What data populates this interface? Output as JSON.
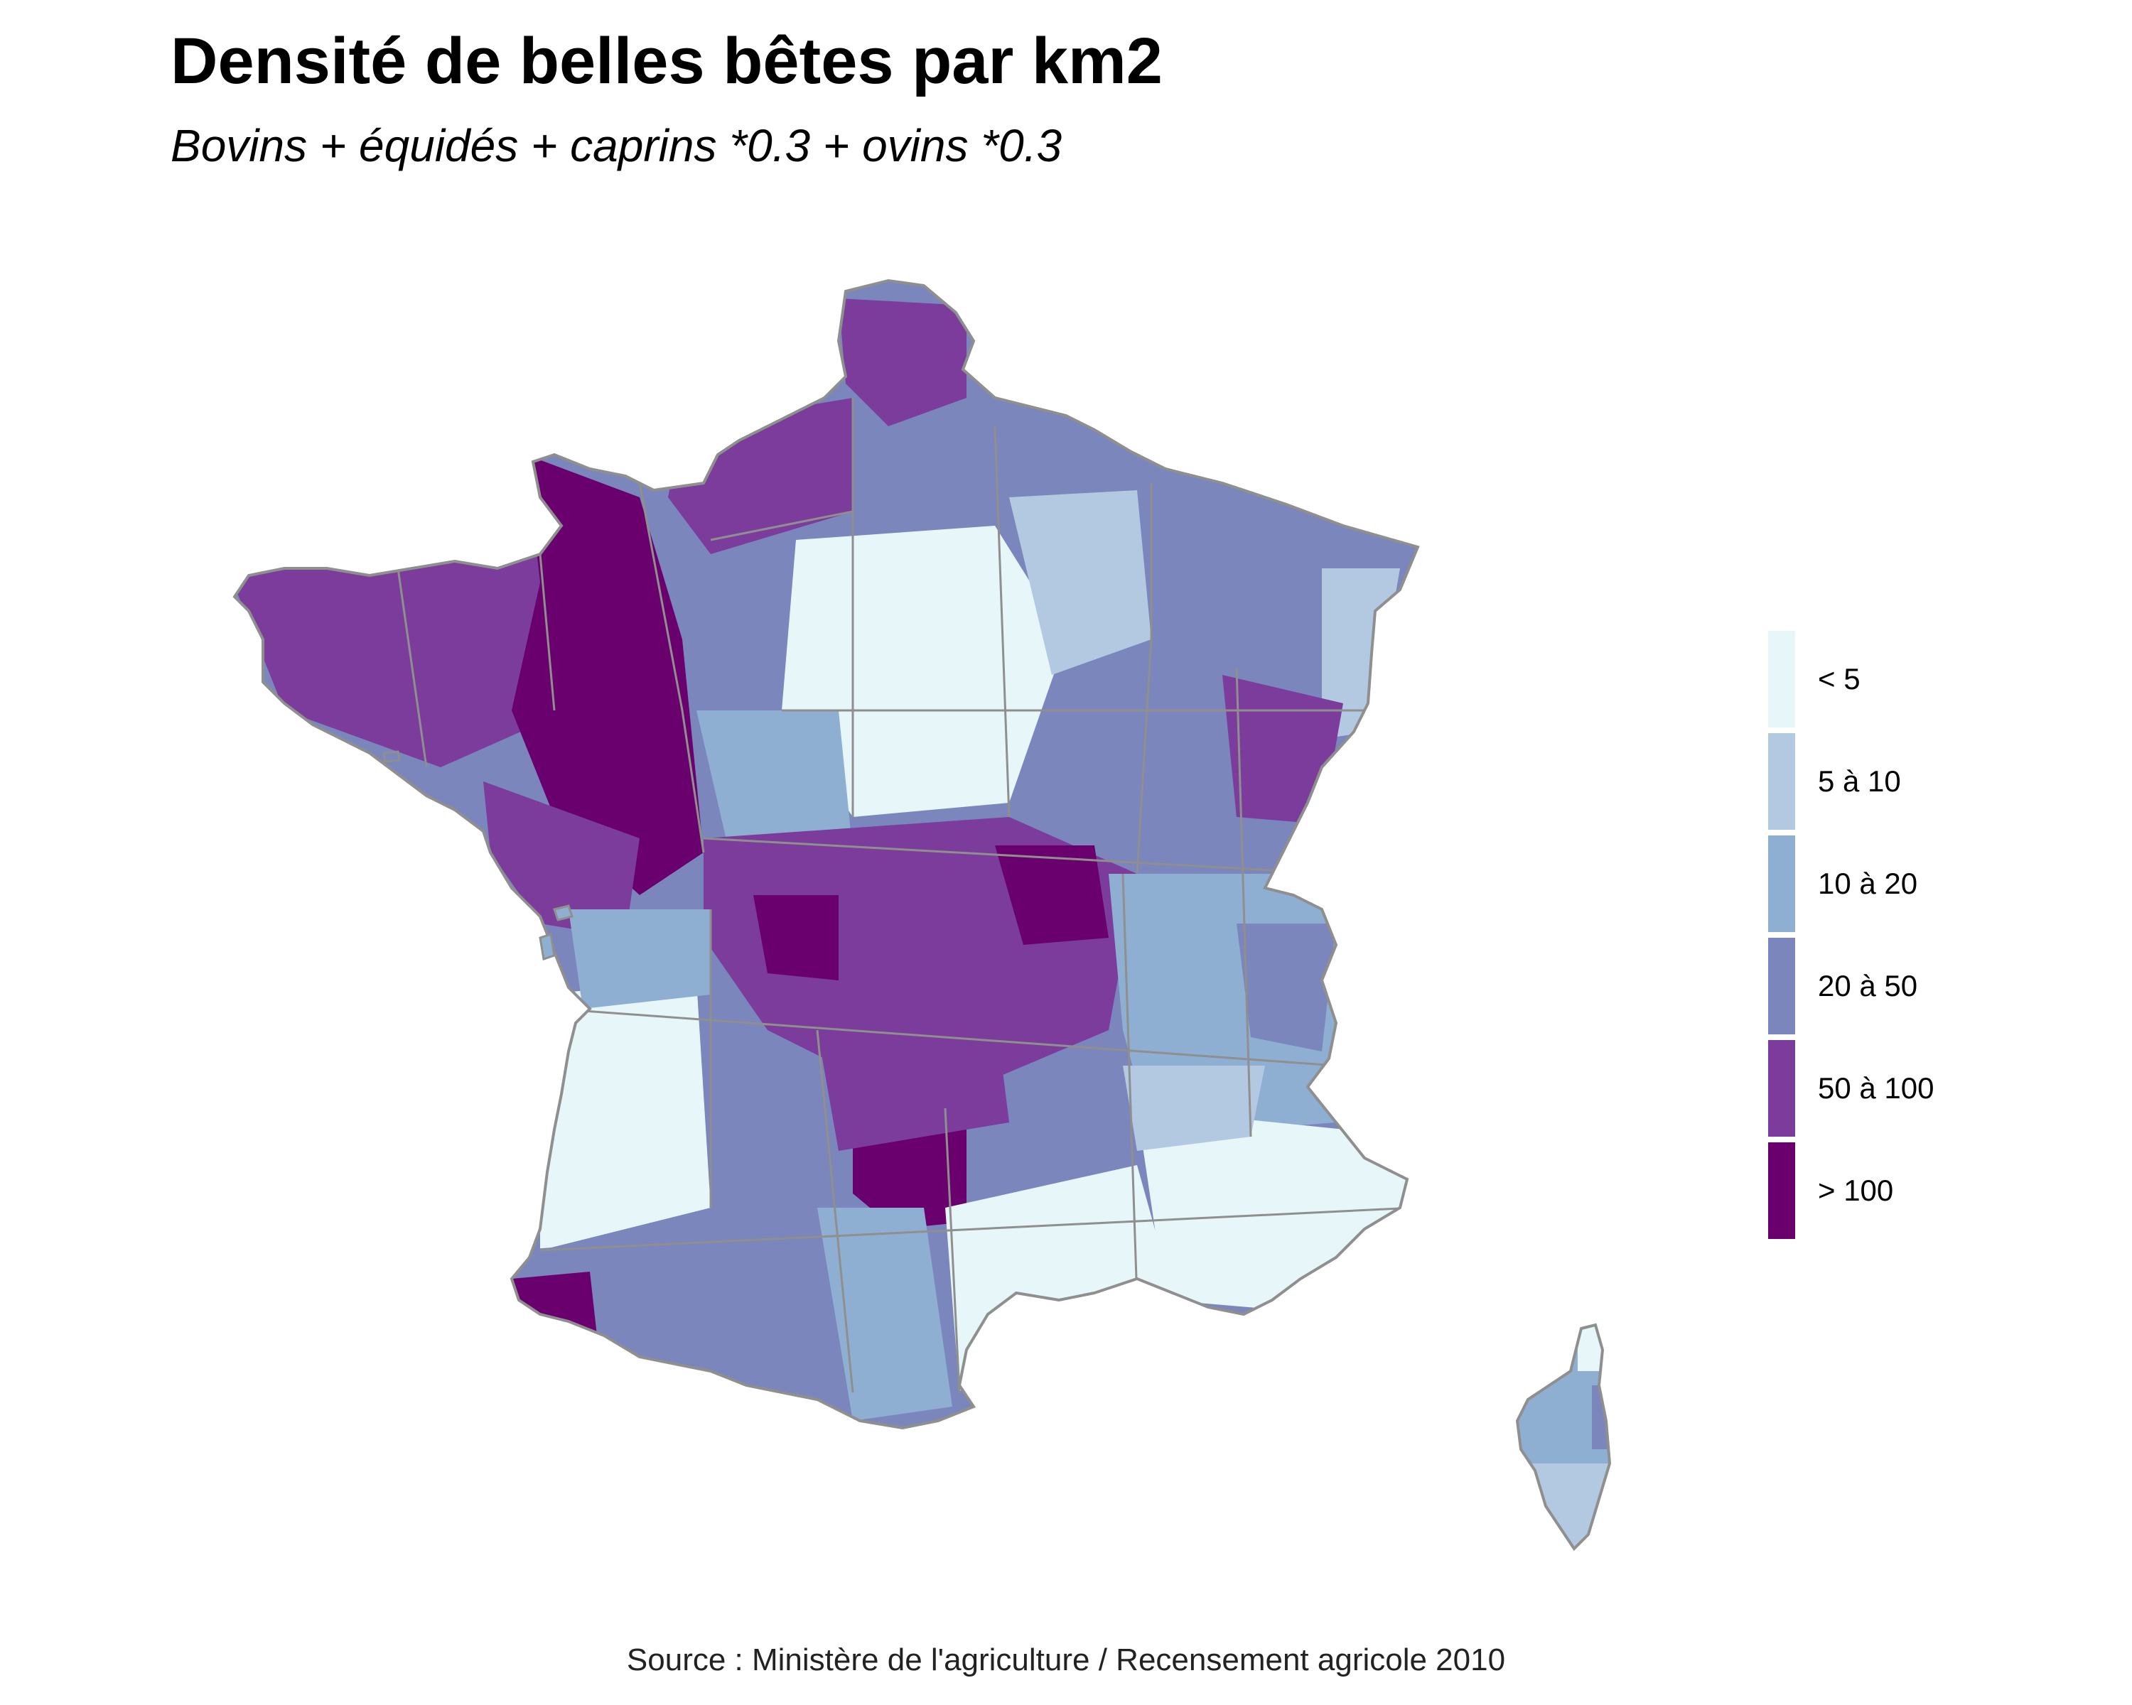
{
  "title": "Densité de belles bêtes par km2",
  "subtitle": "Bovins + équidés + caprins *0.3 + ovins *0.3",
  "caption": "Source : Ministère de l'agriculture / Recensement agricole 2010",
  "legend": {
    "items": [
      {
        "label": "< 5",
        "color": "#e6f6f9"
      },
      {
        "label": "5 à 10",
        "color": "#b3c9e2"
      },
      {
        "label": "10 à 20",
        "color": "#8eafd2"
      },
      {
        "label": "20 à 50",
        "color": "#7a86bc"
      },
      {
        "label": "50 à 100",
        "color": "#7b3c9b"
      },
      {
        "label": "> 100",
        "color": "#6a006e"
      }
    ]
  },
  "colors": {
    "border": "#8f8f8f",
    "background": "#ffffff"
  }
}
